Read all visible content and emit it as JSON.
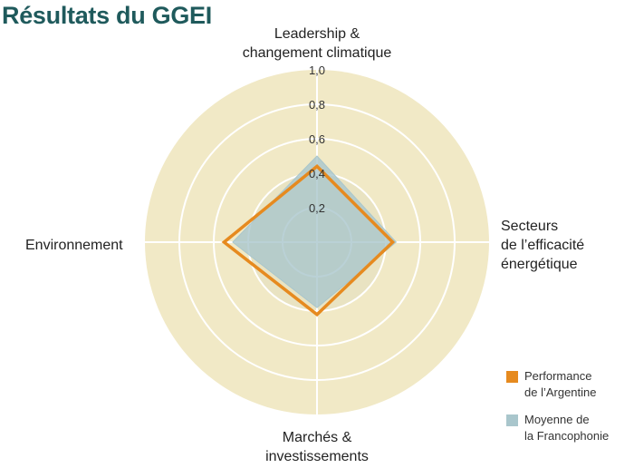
{
  "title": "Résultats du GGEI",
  "chart_data": {
    "type": "radar",
    "axes": [
      {
        "key": "leadership",
        "lines": [
          "Leadership &",
          "changement climatique"
        ]
      },
      {
        "key": "secteurs",
        "lines": [
          "Secteurs",
          "de l’efficacité",
          "énergétique"
        ]
      },
      {
        "key": "marches",
        "lines": [
          "Marchés &",
          "investissements"
        ]
      },
      {
        "key": "environnement",
        "lines": [
          "Environnement"
        ]
      }
    ],
    "rlim": [
      0,
      1.0
    ],
    "ticks": [
      "0,2",
      "0,4",
      "0,6",
      "0,8",
      "1,0"
    ],
    "tick_values": [
      0.2,
      0.4,
      0.6,
      0.8,
      1.0
    ],
    "series": [
      {
        "name": "Performance de l’Argentine",
        "legend_lines": [
          "Performance",
          "de l’Argentine"
        ],
        "color": "#e68a1f",
        "values": [
          0.44,
          0.44,
          0.42,
          0.54
        ]
      },
      {
        "name": "Moyenne de la Francophonie",
        "legend_lines": [
          "Moyenne de",
          "la Francophonie"
        ],
        "color": "#a9c6cc",
        "values": [
          0.5,
          0.46,
          0.38,
          0.49
        ]
      }
    ],
    "colors": {
      "outer_fill": "#f1e9c6",
      "inner_fill": "#e9e3c2",
      "ring": "#ffffff",
      "text": "#222222"
    }
  }
}
